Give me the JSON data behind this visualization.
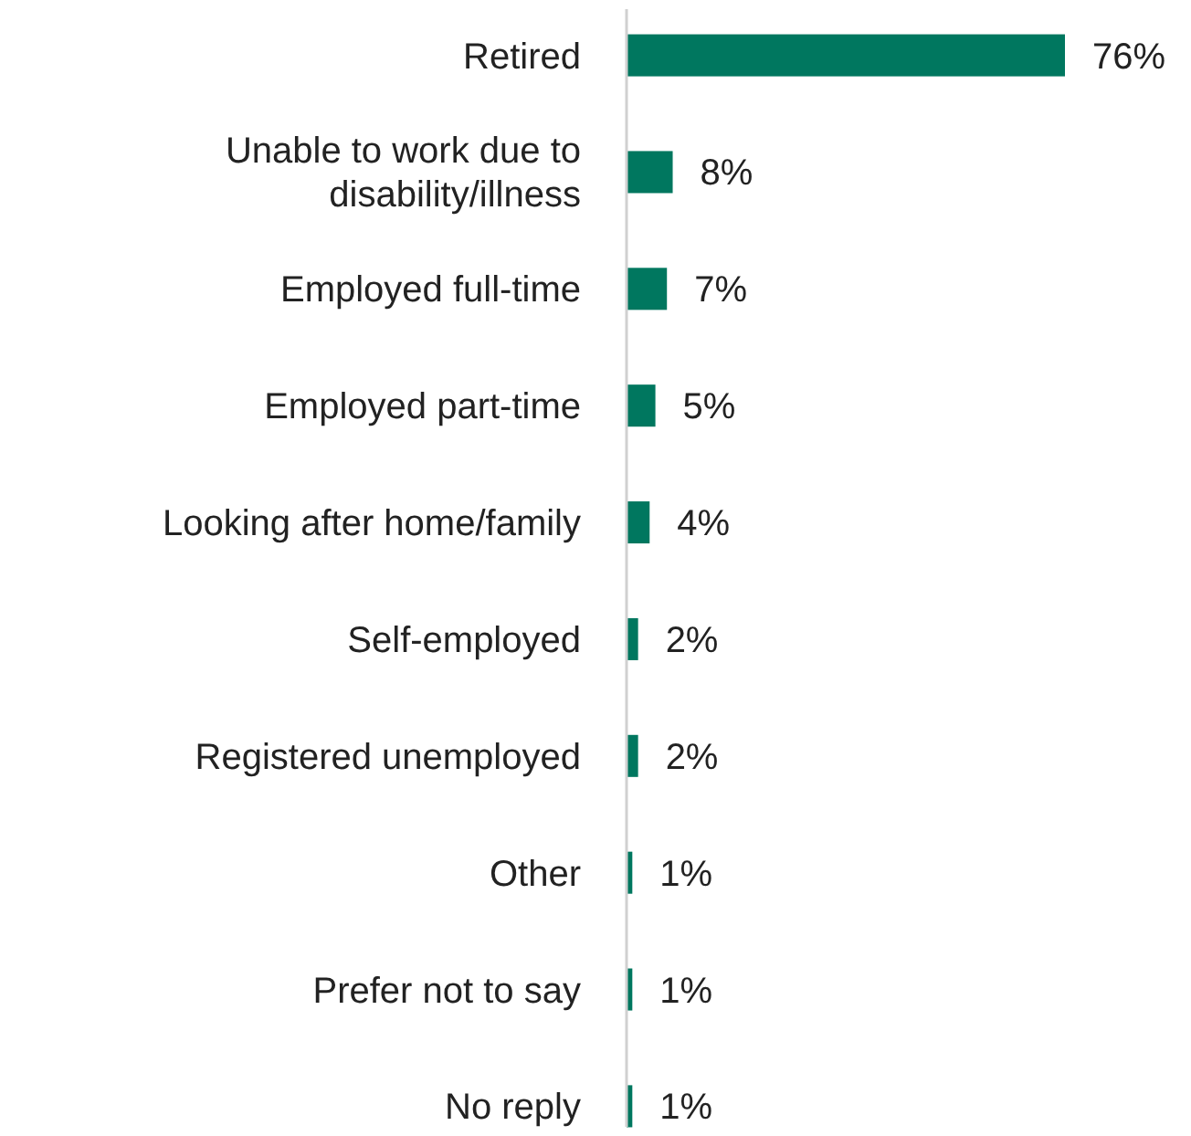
{
  "chart_data": {
    "type": "bar",
    "orientation": "horizontal",
    "color": "#00775f",
    "categories": [
      "Retired",
      "Unable to work due to disability/illness",
      "Employed full-time",
      "Employed part-time",
      "Looking after home/family",
      "Self-employed",
      "Registered unemployed",
      "Other",
      "Prefer not to say",
      "No reply"
    ],
    "values": [
      76,
      8,
      7,
      5,
      4,
      2,
      2,
      1,
      1,
      1
    ],
    "value_labels": [
      "76%",
      "8%",
      "7%",
      "5%",
      "4%",
      "2%",
      "2%",
      "1%",
      "1%",
      "1%"
    ]
  }
}
